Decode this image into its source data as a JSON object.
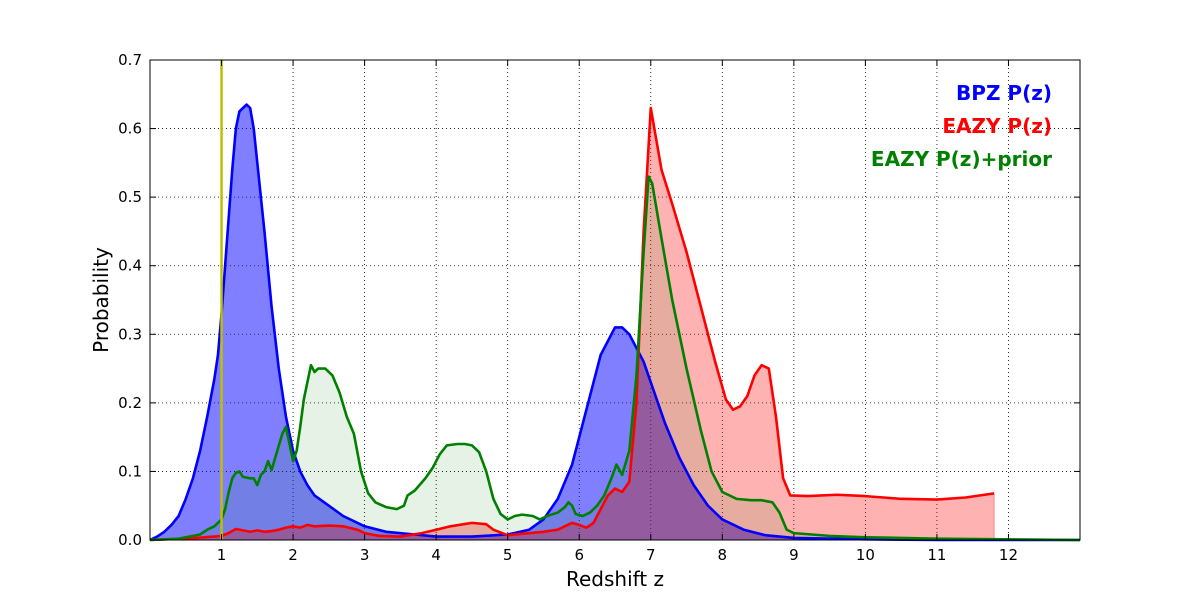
{
  "chart_data": {
    "type": "area",
    "title": "",
    "xlabel": "Redshift z",
    "ylabel": "Probability",
    "xlim": [
      0,
      13
    ],
    "ylim": [
      0,
      0.7
    ],
    "x_ticks": [
      1,
      2,
      3,
      4,
      5,
      6,
      7,
      8,
      9,
      10,
      11,
      12
    ],
    "y_ticks": [
      0.0,
      0.1,
      0.2,
      0.3,
      0.4,
      0.5,
      0.6,
      0.7
    ],
    "y_tick_labels": [
      "0.0",
      "0.1",
      "0.2",
      "0.3",
      "0.4",
      "0.5",
      "0.6",
      "0.7"
    ],
    "grid": true,
    "legend_position": "top-right",
    "reference_line": {
      "x": 1.0,
      "color": "#bfbf00"
    },
    "series": [
      {
        "name": "BPZ P(z)",
        "color": "#0000ff",
        "fill": "#0000ff",
        "fill_opacity": 0.5,
        "points": [
          [
            0,
            0.0
          ],
          [
            0.1,
            0.005
          ],
          [
            0.2,
            0.012
          ],
          [
            0.3,
            0.022
          ],
          [
            0.4,
            0.035
          ],
          [
            0.5,
            0.06
          ],
          [
            0.6,
            0.09
          ],
          [
            0.7,
            0.13
          ],
          [
            0.8,
            0.18
          ],
          [
            0.9,
            0.235
          ],
          [
            0.95,
            0.27
          ],
          [
            1.0,
            0.33
          ],
          [
            1.05,
            0.4
          ],
          [
            1.1,
            0.47
          ],
          [
            1.15,
            0.54
          ],
          [
            1.2,
            0.6
          ],
          [
            1.25,
            0.625
          ],
          [
            1.3,
            0.63
          ],
          [
            1.35,
            0.635
          ],
          [
            1.4,
            0.63
          ],
          [
            1.45,
            0.6
          ],
          [
            1.5,
            0.55
          ],
          [
            1.6,
            0.45
          ],
          [
            1.7,
            0.34
          ],
          [
            1.8,
            0.25
          ],
          [
            1.9,
            0.18
          ],
          [
            2.0,
            0.13
          ],
          [
            2.1,
            0.1
          ],
          [
            2.2,
            0.08
          ],
          [
            2.3,
            0.065
          ],
          [
            2.5,
            0.05
          ],
          [
            2.7,
            0.035
          ],
          [
            3.0,
            0.02
          ],
          [
            3.3,
            0.012
          ],
          [
            3.7,
            0.008
          ],
          [
            4.0,
            0.005
          ],
          [
            4.5,
            0.005
          ],
          [
            5.0,
            0.008
          ],
          [
            5.3,
            0.015
          ],
          [
            5.5,
            0.03
          ],
          [
            5.7,
            0.06
          ],
          [
            5.9,
            0.11
          ],
          [
            6.1,
            0.19
          ],
          [
            6.3,
            0.27
          ],
          [
            6.5,
            0.31
          ],
          [
            6.6,
            0.31
          ],
          [
            6.7,
            0.3
          ],
          [
            6.9,
            0.26
          ],
          [
            7.0,
            0.23
          ],
          [
            7.2,
            0.17
          ],
          [
            7.4,
            0.12
          ],
          [
            7.6,
            0.08
          ],
          [
            7.8,
            0.05
          ],
          [
            8.0,
            0.03
          ],
          [
            8.3,
            0.015
          ],
          [
            8.6,
            0.007
          ],
          [
            9.0,
            0.003
          ],
          [
            10.0,
            0.001
          ],
          [
            11.0,
            0.0
          ],
          [
            13.0,
            0.0
          ]
        ]
      },
      {
        "name": "EAZY P(z)",
        "color": "#ff0000",
        "fill": "#ff0000",
        "fill_opacity": 0.3,
        "points": [
          [
            0,
            0.0
          ],
          [
            0.5,
            0.002
          ],
          [
            0.9,
            0.005
          ],
          [
            1.0,
            0.006
          ],
          [
            1.1,
            0.01
          ],
          [
            1.2,
            0.016
          ],
          [
            1.3,
            0.014
          ],
          [
            1.4,
            0.012
          ],
          [
            1.5,
            0.014
          ],
          [
            1.6,
            0.012
          ],
          [
            1.7,
            0.013
          ],
          [
            1.8,
            0.015
          ],
          [
            1.9,
            0.018
          ],
          [
            2.0,
            0.02
          ],
          [
            2.1,
            0.018
          ],
          [
            2.2,
            0.022
          ],
          [
            2.3,
            0.02
          ],
          [
            2.5,
            0.021
          ],
          [
            2.7,
            0.02
          ],
          [
            2.9,
            0.015
          ],
          [
            3.0,
            0.01
          ],
          [
            3.2,
            0.006
          ],
          [
            3.5,
            0.005
          ],
          [
            3.8,
            0.01
          ],
          [
            4.0,
            0.015
          ],
          [
            4.2,
            0.02
          ],
          [
            4.5,
            0.025
          ],
          [
            4.7,
            0.023
          ],
          [
            4.8,
            0.015
          ],
          [
            5.0,
            0.007
          ],
          [
            5.2,
            0.009
          ],
          [
            5.5,
            0.012
          ],
          [
            5.7,
            0.015
          ],
          [
            5.9,
            0.025
          ],
          [
            6.0,
            0.022
          ],
          [
            6.1,
            0.018
          ],
          [
            6.2,
            0.025
          ],
          [
            6.3,
            0.045
          ],
          [
            6.4,
            0.065
          ],
          [
            6.5,
            0.075
          ],
          [
            6.6,
            0.07
          ],
          [
            6.7,
            0.085
          ],
          [
            6.8,
            0.2
          ],
          [
            6.9,
            0.45
          ],
          [
            7.0,
            0.63
          ],
          [
            7.05,
            0.6
          ],
          [
            7.15,
            0.54
          ],
          [
            7.3,
            0.49
          ],
          [
            7.5,
            0.42
          ],
          [
            7.7,
            0.34
          ],
          [
            7.9,
            0.26
          ],
          [
            8.05,
            0.205
          ],
          [
            8.15,
            0.19
          ],
          [
            8.25,
            0.195
          ],
          [
            8.35,
            0.21
          ],
          [
            8.45,
            0.24
          ],
          [
            8.55,
            0.255
          ],
          [
            8.65,
            0.25
          ],
          [
            8.75,
            0.18
          ],
          [
            8.85,
            0.09
          ],
          [
            8.95,
            0.065
          ],
          [
            9.2,
            0.064
          ],
          [
            9.6,
            0.066
          ],
          [
            10.0,
            0.064
          ],
          [
            10.5,
            0.06
          ],
          [
            11.0,
            0.059
          ],
          [
            11.4,
            0.062
          ],
          [
            11.8,
            0.068
          ]
        ]
      },
      {
        "name": "EAZY P(z)+prior",
        "color": "#008000",
        "fill": "#008000",
        "fill_opacity": 0.1,
        "points": [
          [
            0,
            0.0
          ],
          [
            0.4,
            0.002
          ],
          [
            0.7,
            0.008
          ],
          [
            0.8,
            0.015
          ],
          [
            0.9,
            0.02
          ],
          [
            1.0,
            0.03
          ],
          [
            1.05,
            0.045
          ],
          [
            1.1,
            0.07
          ],
          [
            1.15,
            0.09
          ],
          [
            1.2,
            0.098
          ],
          [
            1.25,
            0.1
          ],
          [
            1.3,
            0.092
          ],
          [
            1.4,
            0.09
          ],
          [
            1.45,
            0.09
          ],
          [
            1.5,
            0.08
          ],
          [
            1.55,
            0.095
          ],
          [
            1.6,
            0.1
          ],
          [
            1.65,
            0.115
          ],
          [
            1.7,
            0.102
          ],
          [
            1.75,
            0.12
          ],
          [
            1.85,
            0.155
          ],
          [
            1.9,
            0.165
          ],
          [
            1.95,
            0.14
          ],
          [
            2.0,
            0.115
          ],
          [
            2.05,
            0.13
          ],
          [
            2.1,
            0.165
          ],
          [
            2.15,
            0.205
          ],
          [
            2.2,
            0.23
          ],
          [
            2.25,
            0.255
          ],
          [
            2.3,
            0.245
          ],
          [
            2.35,
            0.25
          ],
          [
            2.45,
            0.25
          ],
          [
            2.55,
            0.24
          ],
          [
            2.65,
            0.215
          ],
          [
            2.75,
            0.18
          ],
          [
            2.85,
            0.155
          ],
          [
            2.95,
            0.1
          ],
          [
            3.05,
            0.068
          ],
          [
            3.15,
            0.055
          ],
          [
            3.3,
            0.048
          ],
          [
            3.45,
            0.045
          ],
          [
            3.55,
            0.05
          ],
          [
            3.6,
            0.065
          ],
          [
            3.7,
            0.072
          ],
          [
            3.85,
            0.09
          ],
          [
            3.95,
            0.105
          ],
          [
            4.05,
            0.125
          ],
          [
            4.15,
            0.138
          ],
          [
            4.3,
            0.14
          ],
          [
            4.4,
            0.14
          ],
          [
            4.5,
            0.138
          ],
          [
            4.6,
            0.128
          ],
          [
            4.7,
            0.1
          ],
          [
            4.8,
            0.06
          ],
          [
            4.9,
            0.038
          ],
          [
            5.0,
            0.03
          ],
          [
            5.1,
            0.035
          ],
          [
            5.2,
            0.037
          ],
          [
            5.35,
            0.035
          ],
          [
            5.45,
            0.03
          ],
          [
            5.55,
            0.035
          ],
          [
            5.7,
            0.04
          ],
          [
            5.8,
            0.048
          ],
          [
            5.85,
            0.055
          ],
          [
            5.9,
            0.05
          ],
          [
            5.95,
            0.038
          ],
          [
            6.05,
            0.035
          ],
          [
            6.15,
            0.04
          ],
          [
            6.25,
            0.05
          ],
          [
            6.35,
            0.065
          ],
          [
            6.45,
            0.09
          ],
          [
            6.52,
            0.11
          ],
          [
            6.6,
            0.095
          ],
          [
            6.7,
            0.13
          ],
          [
            6.8,
            0.24
          ],
          [
            6.9,
            0.42
          ],
          [
            6.97,
            0.53
          ],
          [
            7.02,
            0.52
          ],
          [
            7.15,
            0.44
          ],
          [
            7.3,
            0.35
          ],
          [
            7.5,
            0.25
          ],
          [
            7.7,
            0.16
          ],
          [
            7.85,
            0.1
          ],
          [
            8.0,
            0.07
          ],
          [
            8.2,
            0.06
          ],
          [
            8.4,
            0.058
          ],
          [
            8.55,
            0.058
          ],
          [
            8.7,
            0.055
          ],
          [
            8.8,
            0.04
          ],
          [
            8.9,
            0.015
          ],
          [
            9.0,
            0.01
          ],
          [
            9.5,
            0.006
          ],
          [
            10.0,
            0.004
          ],
          [
            11.0,
            0.002
          ],
          [
            13.0,
            0.0
          ]
        ]
      }
    ]
  }
}
